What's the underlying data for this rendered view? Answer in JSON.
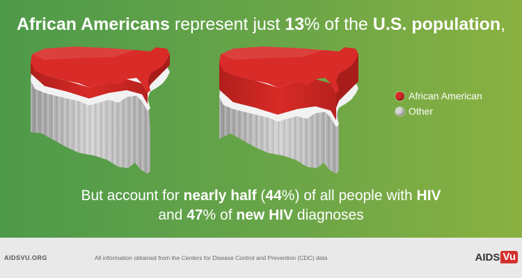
{
  "headline": {
    "part1": "African Americans",
    "part2": " represent just ",
    "part3": "13",
    "part4": "% of the ",
    "part5": "U.S. population",
    "part6": ","
  },
  "subline": {
    "p1": "But account for ",
    "p2": "nearly half",
    "p3": " (",
    "p4": "44",
    "p5": "%) of all people with ",
    "p6": "HIV",
    "p7": " and ",
    "p8": "47",
    "p9": "% of ",
    "p10": "new HIV",
    "p11": " diagnoses"
  },
  "chart_data": {
    "type": "pie",
    "series": [
      {
        "values": [
          13,
          87
        ],
        "categories": [
          "African American",
          "Other"
        ]
      },
      {
        "values": [
          44,
          56
        ],
        "categories": [
          "African American",
          "Other"
        ]
      }
    ],
    "legend": [
      "African American",
      "Other"
    ],
    "legend_position": "right",
    "colors": {
      "african_american": "#d92b28",
      "other": "#d8d8d8"
    }
  },
  "footer": {
    "site": "AIDSVU.ORG",
    "source": "All information obtained from the Centers for Disease Control and Prevention (CDC) data",
    "logo_text": "AIDS",
    "logo_badge": "Vu"
  }
}
